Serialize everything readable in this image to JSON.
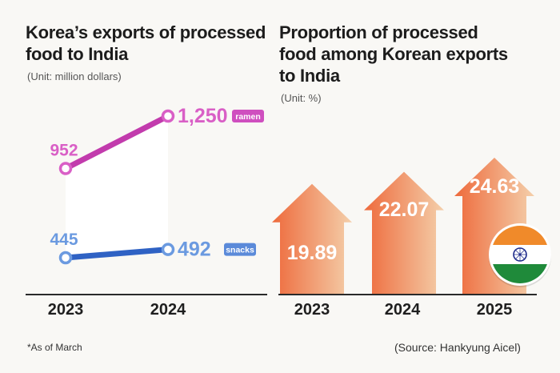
{
  "left": {
    "title_line1": "Korea’s exports of processed",
    "title_line2": "food to India",
    "unit": "(Unit: million dollars)",
    "footnote": "*As of March"
  },
  "right": {
    "title_line1": "Proportion of processed",
    "title_line2": "food among Korean exports",
    "title_line3": "to India",
    "unit": "(Unit: %)",
    "source": "(Source: Hankyung Aicel)"
  },
  "colors": {
    "ramen": "#c23bad",
    "ramen_label": "#d95fc6",
    "ramen_tag": "#cf4fbf",
    "snacks": "#2f62c4",
    "snacks_label": "#6b9ae0",
    "snacks_tag": "#5b8ad9",
    "arrow_dark": "#ee6a3c",
    "arrow_light": "#f4cfaa"
  },
  "chart_data": [
    {
      "type": "line",
      "title": "Korea’s exports of processed food to India",
      "unit": "million dollars",
      "categories": [
        "2023",
        "2024"
      ],
      "series": [
        {
          "name": "ramen",
          "values": [
            952,
            1250
          ],
          "labels": [
            "952",
            "1,250"
          ]
        },
        {
          "name": "snacks",
          "values": [
            445,
            492
          ],
          "labels": [
            "445",
            "492"
          ]
        }
      ],
      "ylim": [
        300,
        1300
      ]
    },
    {
      "type": "bar",
      "title": "Proportion of processed food among Korean exports to India",
      "unit": "%",
      "categories": [
        "2023",
        "2024",
        "2025"
      ],
      "values": [
        19.89,
        22.07,
        24.63
      ],
      "labels": [
        "19.89",
        "22.07",
        "24.63"
      ],
      "ylim": [
        0,
        28
      ]
    }
  ]
}
